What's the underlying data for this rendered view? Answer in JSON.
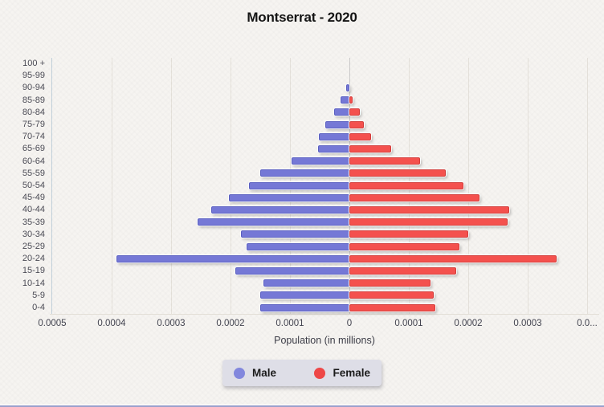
{
  "title": "Montserrat - 2020",
  "xlabel": "Population (in millions)",
  "legend": {
    "male_label": "Male",
    "female_label": "Female"
  },
  "colors": {
    "male": "#7578d6",
    "female": "#f4514e",
    "male_legend_dot": "#8287dd",
    "female_legend_dot": "#ee4747",
    "background": "#f6f4f1",
    "legend_background": "#dedee7",
    "bottom_border": "#9aa0cc"
  },
  "chart_data": {
    "type": "bar",
    "subtype": "population-pyramid",
    "title": "Montserrat - 2020",
    "xlabel": "Population (in millions)",
    "legend_position": "bottom-center",
    "grid": true,
    "xlim_millions": [
      -0.0005,
      0.0004
    ],
    "categories": [
      "100 +",
      "95-99",
      "90-94",
      "85-89",
      "80-84",
      "75-79",
      "70-74",
      "65-69",
      "60-64",
      "55-59",
      "50-54",
      "45-49",
      "40-44",
      "35-39",
      "30-34",
      "25-29",
      "20-24",
      "15-19",
      "10-14",
      "5-9",
      "0-4"
    ],
    "series": [
      {
        "name": "Male",
        "side": "left",
        "values": [
          0,
          0,
          5e-06,
          1.5e-05,
          2.6e-05,
          4e-05,
          5.1e-05,
          5.3e-05,
          9.7e-05,
          0.00015,
          0.000169,
          0.000203,
          0.000232,
          0.000255,
          0.000182,
          0.000173,
          0.000392,
          0.000192,
          0.000144,
          0.00015,
          0.00015
        ]
      },
      {
        "name": "Female",
        "side": "right",
        "values": [
          0,
          0,
          0,
          5e-06,
          1.7e-05,
          2.4e-05,
          3.7e-05,
          7e-05,
          0.000119,
          0.000162,
          0.000192,
          0.000219,
          0.000269,
          0.000266,
          0.0002,
          0.000185,
          0.000349,
          0.00018,
          0.000137,
          0.000142,
          0.000145
        ]
      }
    ],
    "x_tick_values": [
      -0.0005,
      -0.0004,
      -0.0003,
      -0.0002,
      -0.0001,
      0,
      0.0001,
      0.0002,
      0.0003,
      0.0004
    ],
    "x_tick_labels": [
      "0.0005",
      "0.0004",
      "0.0003",
      "0.0002",
      "0.0001",
      "0",
      "0.0001",
      "0.0002",
      "0.0003",
      "0.0..."
    ]
  }
}
